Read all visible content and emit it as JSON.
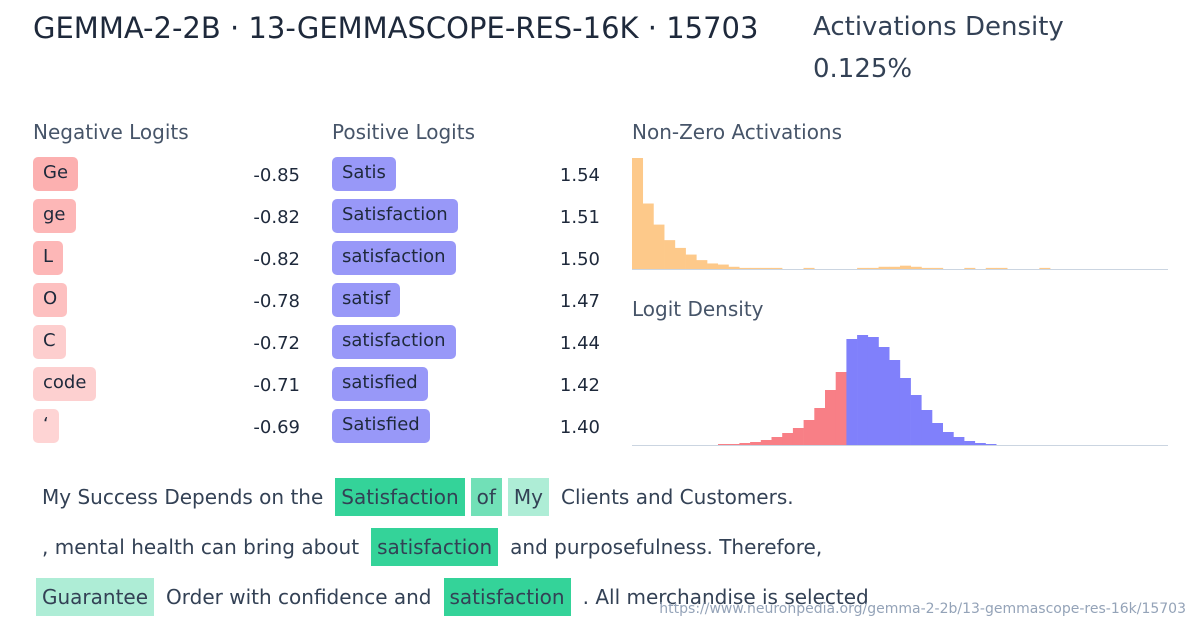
{
  "header": {
    "title": "GEMMA-2-2B · 13-GEMMASCOPE-RES-16K · 15703",
    "density_label": "Activations Density",
    "density_value": "0.125%"
  },
  "negative_logits": {
    "heading": "Negative Logits",
    "rows": [
      {
        "token": "Ge",
        "value": "-0.85"
      },
      {
        "token": "ge",
        "value": "-0.82"
      },
      {
        "token": "L",
        "value": "-0.82"
      },
      {
        "token": "O",
        "value": "-0.78"
      },
      {
        "token": "C",
        "value": "-0.72"
      },
      {
        "token": "code",
        "value": "-0.71"
      },
      {
        "token": "‘",
        "value": "-0.69"
      }
    ]
  },
  "positive_logits": {
    "heading": "Positive Logits",
    "rows": [
      {
        "token": "Satis",
        "value": "1.54"
      },
      {
        "token": "Satisfaction",
        "value": "1.51"
      },
      {
        "token": "satisfaction",
        "value": "1.50"
      },
      {
        "token": "satisf",
        "value": "1.47"
      },
      {
        "token": "satisfaction",
        "value": "1.44"
      },
      {
        "token": "satisfied",
        "value": "1.42"
      },
      {
        "token": "Satisfied",
        "value": "1.40"
      }
    ]
  },
  "activations_chart": {
    "type": "histogram",
    "title": "Non-Zero Activations",
    "color": "#fdc98a",
    "ylim": [
      0,
      100
    ],
    "values": [
      100,
      59,
      40,
      26,
      19,
      13,
      8,
      5,
      4,
      2,
      1,
      1,
      1,
      1,
      0,
      0,
      1,
      0,
      0,
      0,
      0,
      1,
      1,
      2,
      2,
      3,
      2,
      1,
      1,
      0,
      0,
      1,
      0,
      1,
      1,
      0,
      0,
      0,
      1,
      0,
      0,
      0,
      0,
      0,
      0,
      0,
      0,
      0,
      0,
      0
    ]
  },
  "logit_chart": {
    "type": "histogram",
    "title": "Logit Density",
    "ylim": [
      0,
      110
    ],
    "series": [
      {
        "color": "#f87f86",
        "values": [
          1,
          1,
          2,
          3,
          5,
          8,
          12,
          17,
          25,
          37,
          55,
          73
        ]
      },
      {
        "color": "#8080fb",
        "values": [
          106,
          110,
          108,
          98,
          85,
          67,
          50,
          35,
          22,
          13,
          8,
          4,
          2,
          1
        ]
      }
    ]
  },
  "text_lines": [
    [
      {
        "text": "My Success Depends on the"
      },
      {
        "text": "Satisfaction",
        "activation": 1
      },
      {
        "text": "of",
        "activation": 0.7
      },
      {
        "text": "My",
        "activation": 0.4
      },
      {
        "text": "Clients and Customers."
      }
    ],
    [
      {
        "text": ", mental health can bring about"
      },
      {
        "text": "satisfaction",
        "activation": 1
      },
      {
        "text": "and purposefulness. Therefore,"
      }
    ],
    [
      {
        "text": "Guarantee",
        "activation": 0.4
      },
      {
        "text": "Order with confidence and"
      },
      {
        "text": "satisfaction",
        "activation": 1
      },
      {
        "text": ". All merchandise is selected"
      }
    ]
  ],
  "footer": {
    "url": "https://www.neuronpedia.org/gemma-2-2b/13-gemmascope-res-16k/15703"
  }
}
